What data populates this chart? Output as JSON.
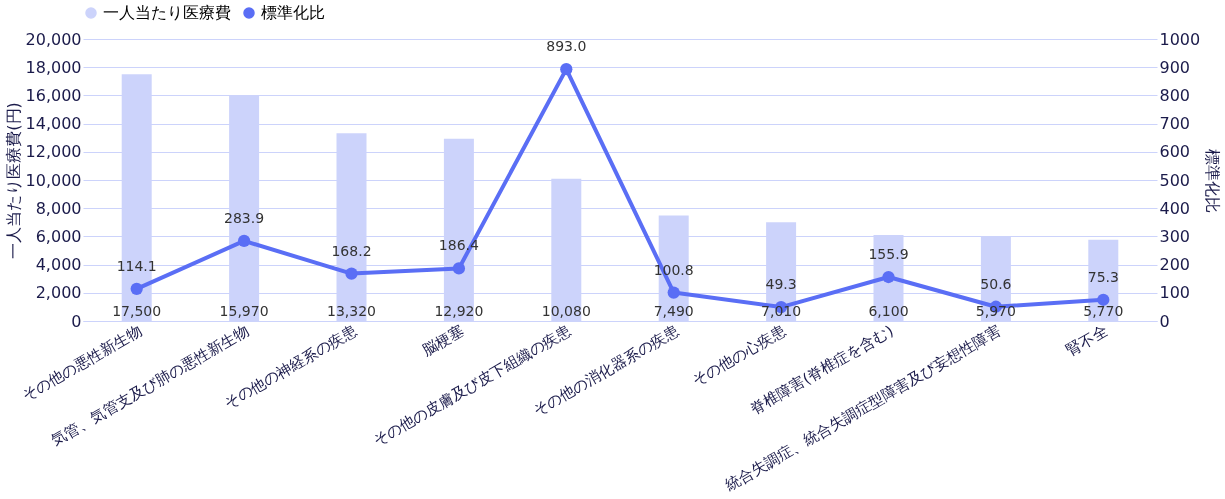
{
  "chart_data": {
    "type": "bar",
    "ylabel": "一人当たり医療費(円)",
    "y2label": "標準化比",
    "categories": [
      "その他の悪性新生物",
      "気管、気管支及び肺の悪性新生物",
      "その他の神経系の疾患",
      "脳梗塞",
      "その他の皮膚及び皮下組織の疾患",
      "その他の消化器系の疾患",
      "その他の心疾患",
      "脊椎障害(脊椎症を含む)",
      "統合失調症、統合失調症型障害及び妄想性障害",
      "腎不全"
    ],
    "series": [
      {
        "name": "一人当たり医療費",
        "color": "#ccd3fb",
        "values": [
          17500,
          15970,
          13320,
          12920,
          10080,
          7490,
          7010,
          6100,
          5970,
          5770
        ]
      },
      {
        "name": "標準化比",
        "type": "line",
        "axis": "y2",
        "color": "#5a6ef5",
        "marker": "circle",
        "values": [
          114.1,
          283.9,
          168.2,
          186.4,
          893.0,
          100.8,
          49.3,
          155.9,
          50.6,
          75.3
        ]
      }
    ],
    "value_labels": [
      [
        "17,500",
        "15,970",
        "13,320",
        "12,920",
        "10,080",
        "7,490",
        "7,010",
        "6,100",
        "5,970",
        "5,770"
      ],
      [
        "114.1",
        "283.9",
        "168.2",
        "186.4",
        "893.0",
        "100.8",
        "49.3",
        "155.9",
        "50.6",
        "75.3"
      ]
    ],
    "ylim": [
      0,
      20000
    ],
    "yticks": [
      0,
      {
        "value": 2000,
        "label": "2,000"
      },
      {
        "value": 4000,
        "label": "4,000"
      },
      {
        "value": 6000,
        "label": "6,000"
      },
      {
        "value": 8000,
        "label": "8,000"
      },
      {
        "value": 10000,
        "label": "10,000"
      },
      {
        "value": 12000,
        "label": "12,000"
      },
      {
        "value": 14000,
        "label": "14,000"
      },
      {
        "value": 16000,
        "label": "16,000"
      },
      {
        "value": 18000,
        "label": "18,000"
      },
      {
        "value": 20000,
        "label": "20,000"
      }
    ],
    "y2lim": [
      0,
      1000
    ],
    "y2ticks": [
      0,
      100,
      200,
      300,
      400,
      500,
      600,
      700,
      800,
      900,
      1000
    ],
    "grid": "y",
    "legend": "top"
  }
}
